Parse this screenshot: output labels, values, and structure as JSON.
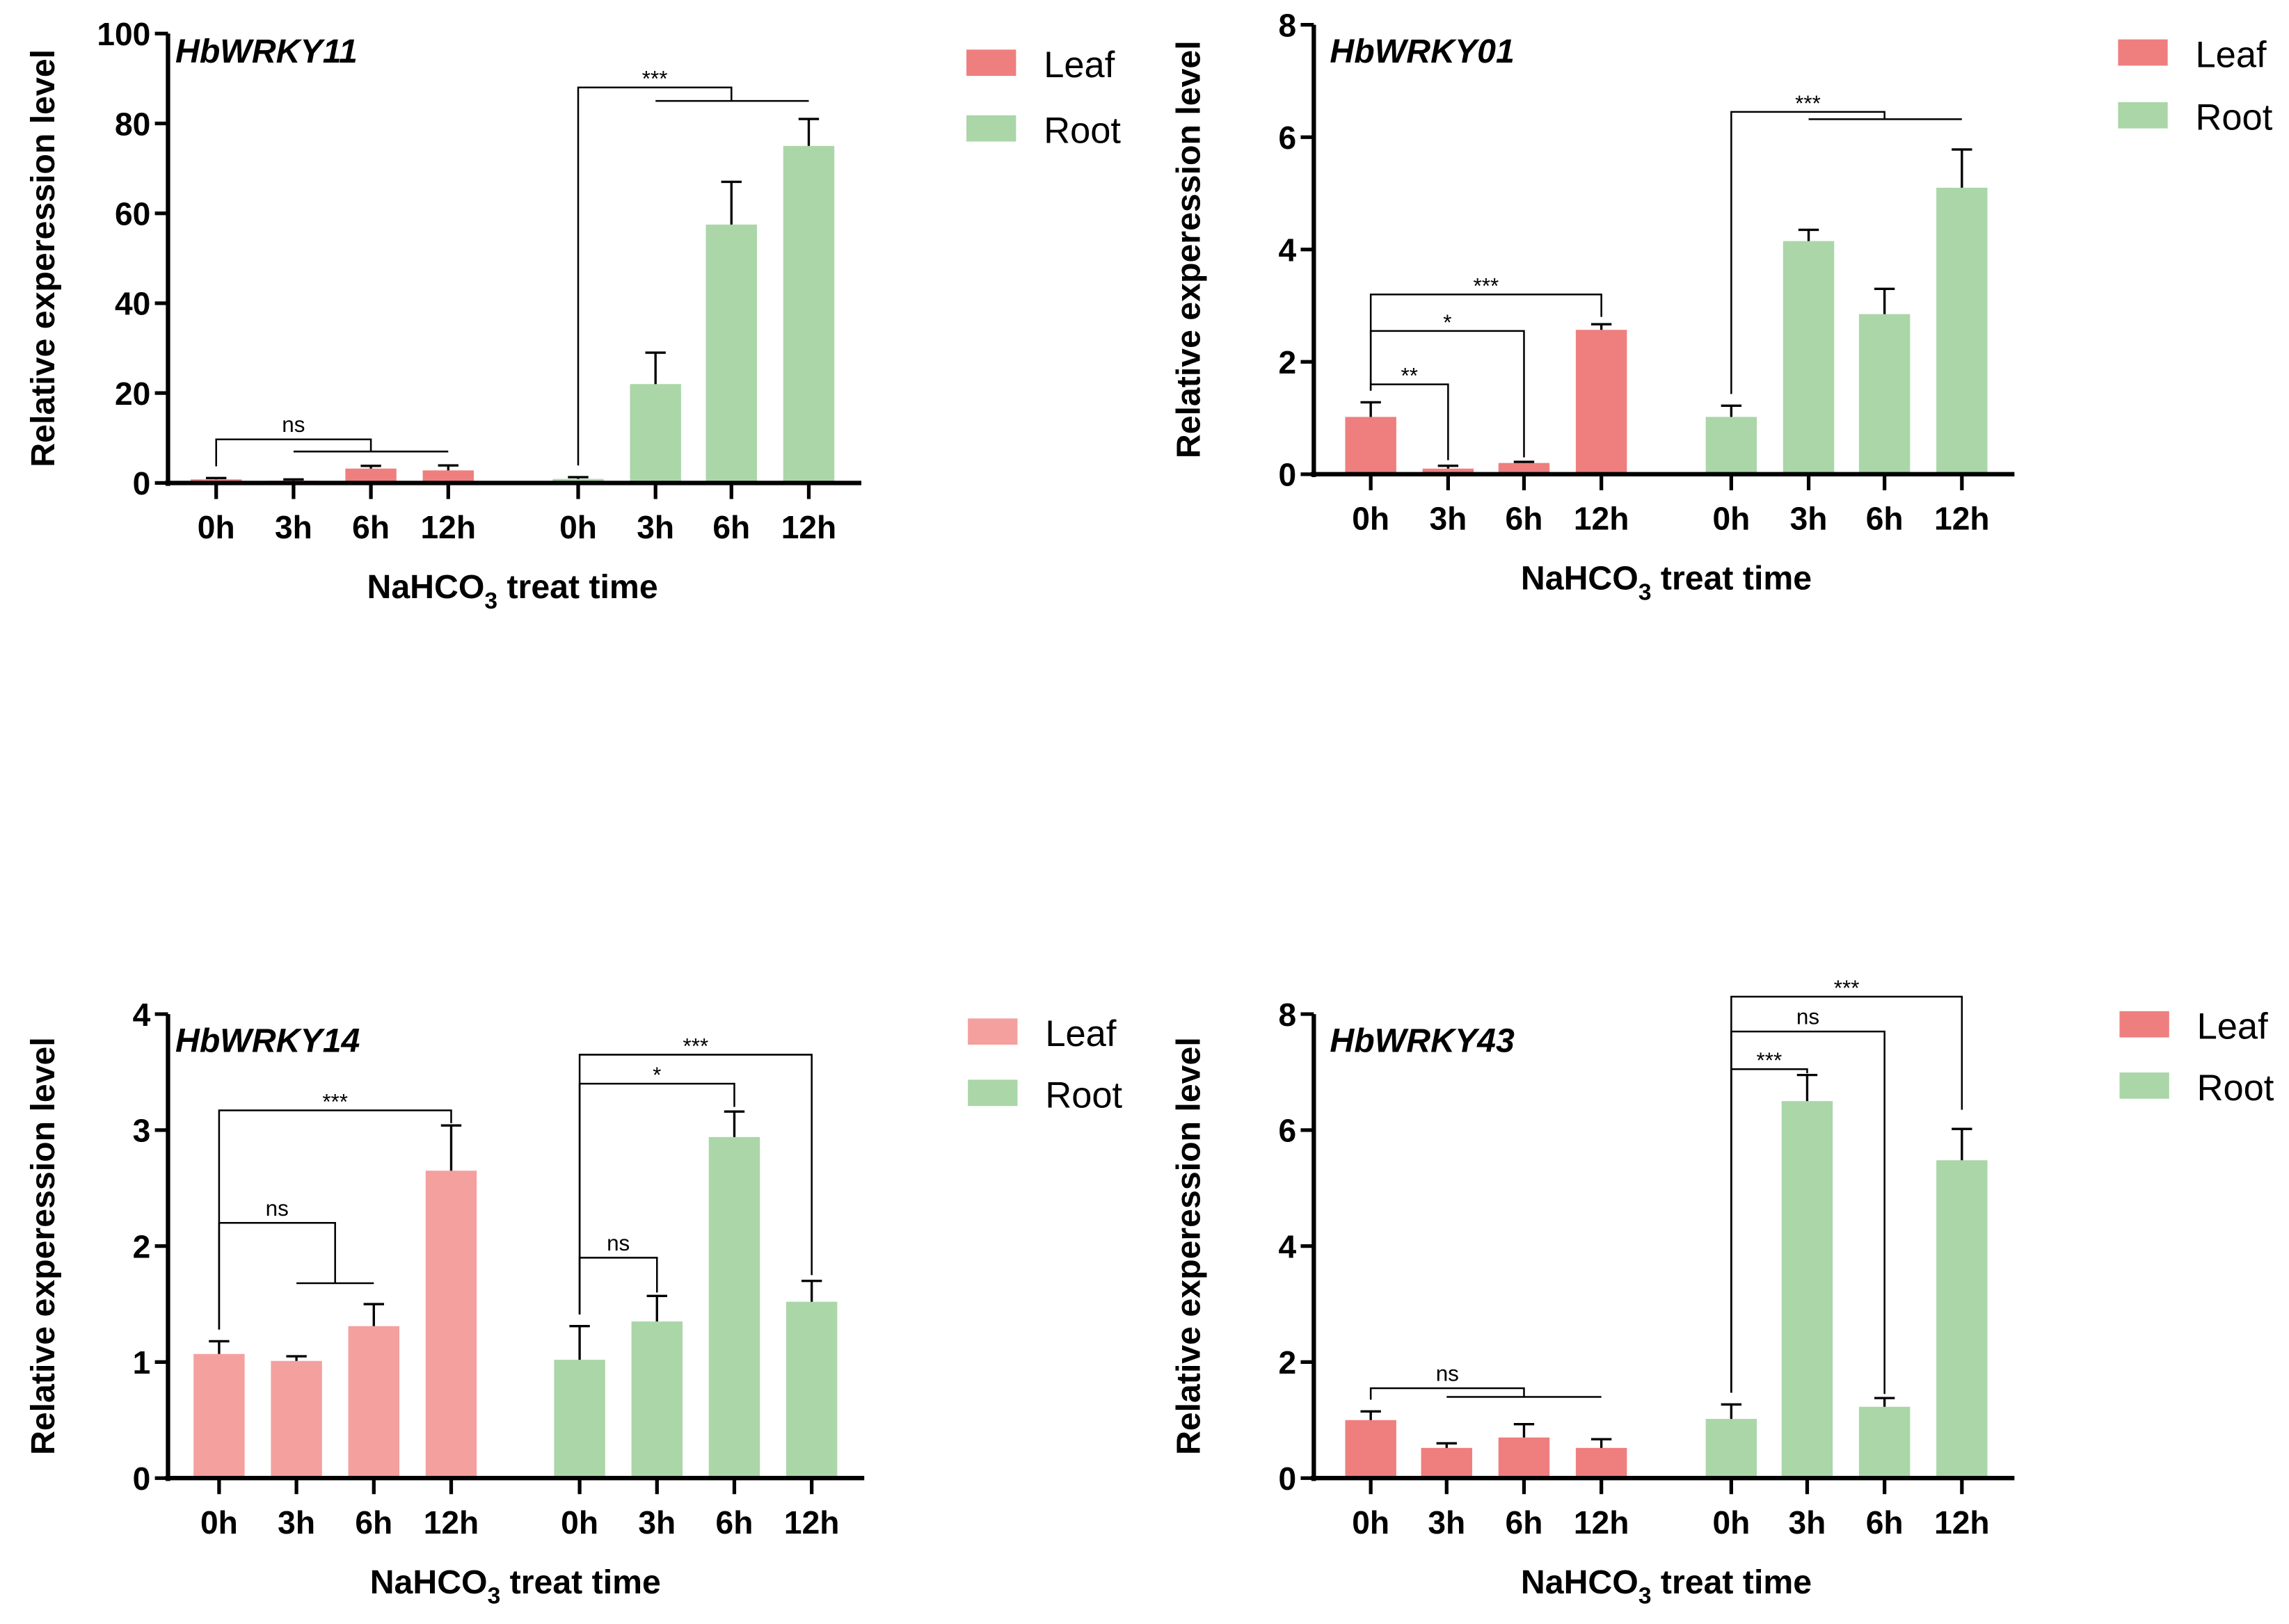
{
  "chart_data": [
    {
      "type": "bar",
      "title": "HbWRKY11",
      "xlabel_main": "NaHCO",
      "xlabel_sub": "3",
      "xlabel_rest": " treat time",
      "ylabel": "Relative experession level",
      "ylim": [
        0,
        100
      ],
      "yticks": [
        "0",
        "20",
        "40",
        "60",
        "80",
        "100"
      ],
      "categories": [
        "0h",
        "3h",
        "6h",
        "12h"
      ],
      "series": [
        {
          "name": "Leaf",
          "color": "#ee7f7e",
          "values": [
            0.8,
            0.5,
            3.2,
            2.8
          ],
          "error_top": [
            1.1,
            0.8,
            3.8,
            3.9
          ]
        },
        {
          "name": "Root",
          "color": "#aad6a8",
          "values": [
            0.9,
            22,
            57.5,
            75
          ],
          "error_top": [
            1.3,
            29,
            67,
            81
          ]
        }
      ],
      "significance": [
        {
          "label": "ns",
          "from": 0,
          "to": 2,
          "y": 9.7,
          "group": [
            1,
            3
          ],
          "gy": 7
        },
        {
          "label": "***",
          "from": 4,
          "to": 6,
          "y": 88,
          "group": [
            5,
            7
          ],
          "gy": 85
        }
      ]
    },
    {
      "type": "bar",
      "title": "HbWRKY01",
      "xlabel_main": "NaHCO",
      "xlabel_sub": "3",
      "xlabel_rest": " treat time",
      "ylabel": "Relative experession level",
      "ylim": [
        0,
        8
      ],
      "yticks": [
        "0",
        "2",
        "4",
        "6",
        "8"
      ],
      "categories": [
        "0h",
        "3h",
        "6h",
        "12h"
      ],
      "series": [
        {
          "name": "Leaf",
          "color": "#ee7f7e",
          "values": [
            1.02,
            0.1,
            0.2,
            2.57
          ],
          "error_top": [
            1.28,
            0.15,
            0.22,
            2.67
          ]
        },
        {
          "name": "Root",
          "color": "#aad6a8",
          "values": [
            1.02,
            4.15,
            2.85,
            5.1
          ],
          "error_top": [
            1.22,
            4.35,
            3.3,
            5.78
          ]
        }
      ],
      "significance": [
        {
          "label": "**",
          "from": 0,
          "to": 1,
          "y": 1.6,
          "end": 0.25
        },
        {
          "label": "*",
          "from": 0,
          "to": 2,
          "y": 2.55,
          "end": 0.3
        },
        {
          "label": "***",
          "from": 0,
          "to": 3,
          "y": 3.2,
          "end": 2.8
        },
        {
          "label": "***",
          "from": 4,
          "to": 6,
          "y": 6.45,
          "group": [
            5,
            7
          ],
          "gy": 6.32
        }
      ]
    },
    {
      "type": "bar",
      "title": "HbWRKY14",
      "xlabel_main": "NaHCO",
      "xlabel_sub": "3",
      "xlabel_rest": " treat time",
      "ylabel": "Relative experession level",
      "ylim": [
        0,
        4
      ],
      "yticks": [
        "0",
        "1",
        "2",
        "3",
        "4"
      ],
      "categories": [
        "0h",
        "3h",
        "6h",
        "12h"
      ],
      "series": [
        {
          "name": "Leaf",
          "color": "#f4a09f",
          "values": [
            1.07,
            1.01,
            1.31,
            2.65
          ],
          "error_top": [
            1.18,
            1.05,
            1.5,
            3.04
          ]
        },
        {
          "name": "Root",
          "color": "#aad6a8",
          "values": [
            1.02,
            1.35,
            2.94,
            1.52
          ],
          "error_top": [
            1.31,
            1.57,
            3.16,
            1.7
          ]
        }
      ],
      "significance": [
        {
          "label": "***",
          "from": 0,
          "to": 3,
          "y": 3.17,
          "end": 3.06
        },
        {
          "label": "ns",
          "from": 0,
          "to": 1.5,
          "y": 2.2,
          "group": [
            1,
            2
          ],
          "gy": 1.68
        },
        {
          "label": "***",
          "from": 4,
          "to": 7,
          "y": 3.65,
          "end": 1.75
        },
        {
          "label": "*",
          "from": 4,
          "to": 6,
          "y": 3.4,
          "end": 3.2
        },
        {
          "label": "ns",
          "from": 4,
          "to": 5,
          "y": 1.9,
          "end": 1.6
        }
      ]
    },
    {
      "type": "bar",
      "title": "HbWRKY43",
      "xlabel_main": "NaHCO",
      "xlabel_sub": "3",
      "xlabel_rest": " treat time",
      "ylabel": "Relative experession level",
      "ylim": [
        0,
        8
      ],
      "yticks": [
        "0",
        "2",
        "4",
        "6",
        "8"
      ],
      "categories": [
        "0h",
        "3h",
        "6h",
        "12h"
      ],
      "series": [
        {
          "name": "Leaf",
          "color": "#ee7f7e",
          "values": [
            1.0,
            0.52,
            0.7,
            0.52
          ],
          "error_top": [
            1.15,
            0.6,
            0.93,
            0.67
          ]
        },
        {
          "name": "Root",
          "color": "#aad6a8",
          "values": [
            1.02,
            6.5,
            1.23,
            5.48
          ],
          "error_top": [
            1.27,
            6.95,
            1.38,
            6.02
          ]
        }
      ],
      "significance": [
        {
          "label": "ns",
          "from": 0,
          "to": 2,
          "y": 1.55,
          "group": [
            1,
            3
          ],
          "gy": 1.4
        },
        {
          "label": "***",
          "from": 4,
          "to": 5,
          "y": 7.05,
          "end": 6.98
        },
        {
          "label": "ns",
          "from": 4,
          "to": 6,
          "y": 7.7,
          "end": 1.45
        },
        {
          "label": "***",
          "from": 4,
          "to": 7,
          "y": 8.3,
          "end": 6.35
        }
      ]
    }
  ]
}
